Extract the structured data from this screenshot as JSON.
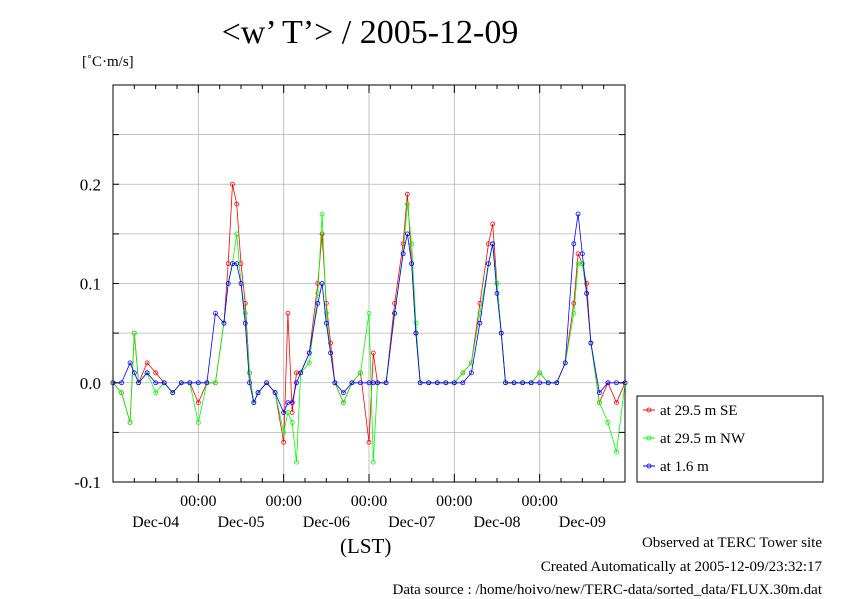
{
  "chart_data": {
    "type": "line",
    "title": "<w’ T’> / 2005-12-09",
    "ylabel": "[˚C·m/s]",
    "xlabel": "(LST)",
    "ylim": [
      -0.1,
      0.3
    ],
    "xlim": [
      0,
      6
    ],
    "y_ticks": [
      -0.1,
      0.0,
      0.1,
      0.2
    ],
    "y_tick_labels": [
      "-0.1",
      "0.0",
      "0.1",
      "0.2"
    ],
    "x_time_tick_labels": [
      "00:00",
      "00:00",
      "00:00",
      "00:00",
      "00:00"
    ],
    "x_date_labels": [
      "Dec-04",
      "Dec-05",
      "Dec-06",
      "Dec-07",
      "Dec-08",
      "Dec-09"
    ],
    "grid": true,
    "legend_position": "right",
    "series": [
      {
        "name": "at 29.5 m SE",
        "color": "#ff0000",
        "x": [
          0.0,
          0.1,
          0.2,
          0.25,
          0.3,
          0.4,
          0.5,
          0.6,
          0.7,
          0.8,
          0.9,
          1.0,
          1.1,
          1.2,
          1.3,
          1.35,
          1.4,
          1.45,
          1.5,
          1.55,
          1.6,
          1.65,
          1.7,
          1.8,
          1.9,
          2.0,
          2.05,
          2.1,
          2.15,
          2.2,
          2.3,
          2.4,
          2.45,
          2.5,
          2.55,
          2.6,
          2.7,
          2.8,
          2.9,
          3.0,
          3.05,
          3.1,
          3.2,
          3.3,
          3.4,
          3.45,
          3.5,
          3.55,
          3.6,
          3.7,
          3.8,
          3.9,
          4.0,
          4.1,
          4.2,
          4.3,
          4.4,
          4.45,
          4.5,
          4.55,
          4.6,
          4.7,
          4.8,
          4.9,
          5.0,
          5.1,
          5.2,
          5.3,
          5.4,
          5.45,
          5.5,
          5.55,
          5.6,
          5.7,
          5.8,
          5.9,
          6.0
        ],
        "values": [
          0.0,
          -0.01,
          -0.04,
          0.05,
          0.0,
          0.02,
          0.01,
          0.0,
          -0.01,
          0.0,
          0.0,
          -0.02,
          0.0,
          0.0,
          0.06,
          0.12,
          0.2,
          0.18,
          0.12,
          0.08,
          0.01,
          -0.02,
          -0.01,
          0.0,
          -0.01,
          -0.06,
          0.07,
          -0.03,
          0.01,
          0.01,
          0.03,
          0.1,
          0.15,
          0.08,
          0.04,
          0.0,
          -0.02,
          0.0,
          0.01,
          -0.06,
          0.03,
          0.0,
          0.0,
          0.08,
          0.14,
          0.19,
          0.12,
          0.05,
          0.0,
          0.0,
          0.0,
          0.0,
          0.0,
          0.01,
          0.02,
          0.08,
          0.14,
          0.16,
          0.1,
          0.05,
          0.0,
          0.0,
          0.0,
          0.0,
          0.01,
          0.0,
          0.0,
          0.02,
          0.08,
          0.13,
          0.12,
          0.1,
          0.04,
          -0.02,
          0.0,
          -0.02,
          0.0
        ]
      },
      {
        "name": "at 29.5 m NW",
        "color": "#00ff00",
        "x": [
          0.0,
          0.1,
          0.2,
          0.25,
          0.3,
          0.4,
          0.5,
          0.6,
          0.7,
          0.8,
          0.9,
          1.0,
          1.1,
          1.2,
          1.3,
          1.35,
          1.4,
          1.45,
          1.5,
          1.55,
          1.6,
          1.65,
          1.7,
          1.8,
          1.9,
          2.0,
          2.05,
          2.1,
          2.15,
          2.2,
          2.3,
          2.4,
          2.45,
          2.5,
          2.55,
          2.6,
          2.7,
          2.8,
          2.9,
          3.0,
          3.05,
          3.1,
          3.2,
          3.3,
          3.4,
          3.45,
          3.5,
          3.55,
          3.6,
          3.7,
          3.8,
          3.9,
          4.0,
          4.1,
          4.2,
          4.3,
          4.4,
          4.45,
          4.5,
          4.55,
          4.6,
          4.7,
          4.8,
          4.9,
          5.0,
          5.1,
          5.2,
          5.3,
          5.4,
          5.45,
          5.5,
          5.55,
          5.6,
          5.7,
          5.8,
          5.9,
          6.0
        ],
        "values": [
          0.0,
          -0.01,
          -0.04,
          0.05,
          0.0,
          0.01,
          -0.01,
          0.0,
          -0.01,
          0.0,
          0.0,
          -0.04,
          0.0,
          0.0,
          0.06,
          0.1,
          0.12,
          0.15,
          0.1,
          0.07,
          0.01,
          -0.02,
          -0.01,
          0.0,
          -0.01,
          -0.05,
          -0.03,
          -0.04,
          -0.08,
          0.01,
          0.02,
          0.09,
          0.17,
          0.07,
          0.03,
          0.0,
          -0.02,
          0.0,
          0.01,
          0.07,
          -0.08,
          0.0,
          0.0,
          0.07,
          0.13,
          0.18,
          0.14,
          0.06,
          0.0,
          0.0,
          0.0,
          0.0,
          0.0,
          0.01,
          0.02,
          0.07,
          0.12,
          0.14,
          0.1,
          0.05,
          0.0,
          0.0,
          0.0,
          0.0,
          0.01,
          0.0,
          0.0,
          0.02,
          0.07,
          0.12,
          0.12,
          0.09,
          0.04,
          -0.02,
          -0.04,
          -0.07,
          0.0
        ]
      },
      {
        "name": "at 1.6 m",
        "color": "#0000ff",
        "x": [
          0.0,
          0.1,
          0.2,
          0.25,
          0.3,
          0.4,
          0.5,
          0.6,
          0.7,
          0.8,
          0.9,
          1.0,
          1.1,
          1.2,
          1.3,
          1.35,
          1.4,
          1.45,
          1.5,
          1.55,
          1.6,
          1.65,
          1.7,
          1.8,
          1.9,
          2.0,
          2.05,
          2.1,
          2.15,
          2.2,
          2.3,
          2.4,
          2.45,
          2.5,
          2.55,
          2.6,
          2.7,
          2.8,
          2.9,
          3.0,
          3.05,
          3.1,
          3.2,
          3.3,
          3.4,
          3.45,
          3.5,
          3.55,
          3.6,
          3.7,
          3.8,
          3.9,
          4.0,
          4.1,
          4.2,
          4.3,
          4.4,
          4.45,
          4.5,
          4.55,
          4.6,
          4.7,
          4.8,
          4.9,
          5.0,
          5.1,
          5.2,
          5.3,
          5.4,
          5.45,
          5.5,
          5.55,
          5.6,
          5.7,
          5.8,
          5.9,
          6.0
        ],
        "values": [
          0.0,
          0.0,
          0.02,
          0.01,
          0.0,
          0.01,
          0.0,
          0.0,
          -0.01,
          0.0,
          0.0,
          0.0,
          0.0,
          0.07,
          0.06,
          0.1,
          0.12,
          0.12,
          0.1,
          0.06,
          0.0,
          -0.02,
          -0.01,
          0.0,
          -0.01,
          -0.03,
          -0.02,
          -0.02,
          0.0,
          0.01,
          0.03,
          0.08,
          0.1,
          0.06,
          0.03,
          0.0,
          -0.01,
          0.0,
          0.0,
          0.0,
          0.0,
          0.0,
          0.0,
          0.07,
          0.13,
          0.15,
          0.12,
          0.05,
          0.0,
          0.0,
          0.0,
          0.0,
          0.0,
          0.0,
          0.01,
          0.06,
          0.12,
          0.14,
          0.09,
          0.05,
          0.0,
          0.0,
          0.0,
          0.0,
          0.0,
          0.0,
          0.0,
          0.02,
          0.14,
          0.17,
          0.13,
          0.09,
          0.04,
          -0.01,
          0.0,
          0.0,
          0.0
        ]
      }
    ]
  },
  "footer": {
    "line1": "Observed at TERC Tower site",
    "line2": "Created Automatically at 2005-12-09/23:32:17",
    "line3": "Data source : /home/hoivo/new/TERC-data/sorted_data/FLUX.30m.dat"
  }
}
